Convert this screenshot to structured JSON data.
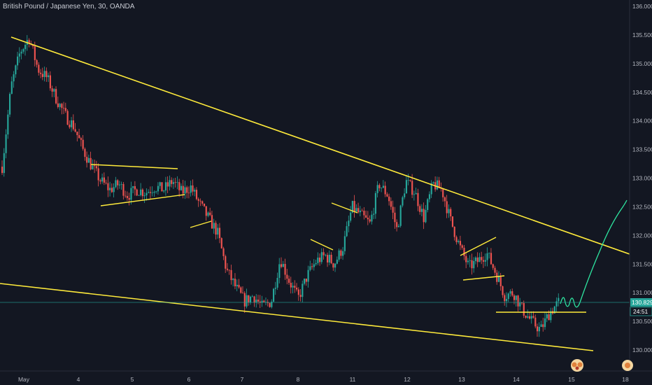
{
  "header": {
    "title": "British Pound / Japanese Yen, 30, OANDA"
  },
  "price_badges": {
    "last_price": "130.829",
    "countdown": "24:51"
  },
  "colors": {
    "background": "#131722",
    "up_candle": "#26a69a",
    "down_candle": "#ef5350",
    "trendline": "#ffeb3b",
    "projection": "#2ee6a1",
    "axis_text": "#b2b5be",
    "price_line": "#26a69a"
  },
  "chart_data": {
    "type": "candlestick",
    "title": "British Pound / Japanese Yen, 30, OANDA",
    "y_ticks": [
      "136.000",
      "135.500",
      "135.000",
      "134.500",
      "134.000",
      "133.500",
      "133.000",
      "132.500",
      "132.000",
      "131.500",
      "131.000",
      "130.500",
      "130.000"
    ],
    "y_range": [
      129.85,
      136.05
    ],
    "x_ticks": [
      "May",
      "4",
      "5",
      "6",
      "7",
      "8",
      "11",
      "12",
      "13",
      "14",
      "15",
      "18"
    ],
    "last_price": 130.829,
    "close_path": [
      [
        0,
        133.2
      ],
      [
        1,
        134.6
      ],
      [
        2,
        135.2
      ],
      [
        3,
        135.45
      ],
      [
        4,
        134.9
      ],
      [
        5,
        134.75
      ],
      [
        6,
        134.4
      ],
      [
        7,
        134.1
      ],
      [
        8,
        133.9
      ],
      [
        9,
        133.5
      ],
      [
        10,
        133.2
      ],
      [
        11,
        132.95
      ],
      [
        12,
        132.8
      ],
      [
        13,
        132.9
      ],
      [
        14,
        132.7
      ],
      [
        15,
        132.8
      ],
      [
        16,
        132.75
      ],
      [
        17,
        132.85
      ],
      [
        18,
        132.8
      ],
      [
        19,
        132.95
      ],
      [
        20,
        132.75
      ],
      [
        21,
        132.85
      ],
      [
        22,
        132.55
      ],
      [
        23,
        132.3
      ],
      [
        24,
        132.05
      ],
      [
        25,
        131.4
      ],
      [
        26,
        131.1
      ],
      [
        27,
        130.85
      ],
      [
        28,
        130.95
      ],
      [
        29,
        130.75
      ],
      [
        30,
        130.85
      ],
      [
        31,
        131.6
      ],
      [
        32,
        131.2
      ],
      [
        33,
        130.9
      ],
      [
        34,
        131.3
      ],
      [
        35,
        131.55
      ],
      [
        36,
        131.65
      ],
      [
        37,
        131.5
      ],
      [
        38,
        131.8
      ],
      [
        39,
        132.5
      ],
      [
        40,
        132.35
      ],
      [
        41,
        132.2
      ],
      [
        42,
        132.9
      ],
      [
        43,
        132.7
      ],
      [
        44,
        132.1
      ],
      [
        45,
        132.95
      ],
      [
        46,
        132.75
      ],
      [
        47,
        132.3
      ],
      [
        48,
        132.9
      ],
      [
        49,
        132.8
      ],
      [
        50,
        132.25
      ],
      [
        51,
        131.8
      ],
      [
        52,
        131.45
      ],
      [
        53,
        131.55
      ],
      [
        54,
        131.7
      ],
      [
        55,
        131.35
      ],
      [
        56,
        130.95
      ],
      [
        57,
        131.0
      ],
      [
        58,
        130.7
      ],
      [
        59,
        130.5
      ],
      [
        60,
        130.35
      ],
      [
        61,
        130.65
      ],
      [
        62,
        130.83
      ]
    ],
    "trendlines": [
      {
        "name": "upper-wedge",
        "from": [
          "May 1",
          135.45
        ],
        "to": [
          "May 15",
          131.55
        ]
      },
      {
        "name": "lower-wedge",
        "from": [
          "Apr 30",
          130.95
        ],
        "to": [
          "May 15",
          129.99
        ]
      }
    ]
  }
}
